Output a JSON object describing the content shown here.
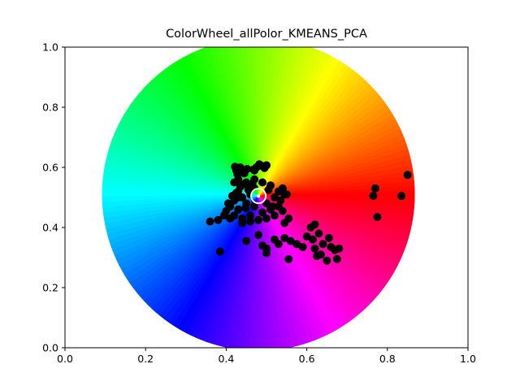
{
  "chart_data": {
    "type": "scatter",
    "title": "ColorWheel_allPolor_KMEANS_PCA",
    "xlabel": "",
    "ylabel": "",
    "xlim": [
      0,
      1
    ],
    "ylim": [
      0,
      1
    ],
    "x_ticks": [
      "0.0",
      "0.2",
      "0.4",
      "0.6",
      "0.8",
      "1.0"
    ],
    "y_ticks": [
      "0.0",
      "0.2",
      "0.4",
      "0.6",
      "0.8",
      "1.0"
    ],
    "grid": false,
    "legend": "none",
    "background": {
      "type": "hue-color-wheel",
      "center": [
        0.48,
        0.51
      ],
      "radius": 0.52,
      "hue_at_0deg": "red",
      "direction": "counterclockwise"
    },
    "marker_color": "#000000",
    "center_marker": {
      "x": 0.48,
      "y": 0.505,
      "type": "mini-color-wheel"
    },
    "points": [
      {
        "x": 0.425,
        "y": 0.59
      },
      {
        "x": 0.435,
        "y": 0.6
      },
      {
        "x": 0.428,
        "y": 0.577
      },
      {
        "x": 0.44,
        "y": 0.588
      },
      {
        "x": 0.452,
        "y": 0.595
      },
      {
        "x": 0.445,
        "y": 0.58
      },
      {
        "x": 0.422,
        "y": 0.602
      },
      {
        "x": 0.475,
        "y": 0.6
      },
      {
        "x": 0.488,
        "y": 0.605
      },
      {
        "x": 0.495,
        "y": 0.598
      },
      {
        "x": 0.482,
        "y": 0.61
      },
      {
        "x": 0.468,
        "y": 0.593
      },
      {
        "x": 0.5,
        "y": 0.607
      },
      {
        "x": 0.45,
        "y": 0.55
      },
      {
        "x": 0.47,
        "y": 0.53
      },
      {
        "x": 0.43,
        "y": 0.52
      },
      {
        "x": 0.44,
        "y": 0.5
      },
      {
        "x": 0.46,
        "y": 0.51
      },
      {
        "x": 0.42,
        "y": 0.49
      },
      {
        "x": 0.41,
        "y": 0.47
      },
      {
        "x": 0.43,
        "y": 0.46
      },
      {
        "x": 0.45,
        "y": 0.48
      },
      {
        "x": 0.47,
        "y": 0.47
      },
      {
        "x": 0.4,
        "y": 0.455
      },
      {
        "x": 0.42,
        "y": 0.44
      },
      {
        "x": 0.44,
        "y": 0.43
      },
      {
        "x": 0.46,
        "y": 0.44
      },
      {
        "x": 0.49,
        "y": 0.45
      },
      {
        "x": 0.51,
        "y": 0.46
      },
      {
        "x": 0.5,
        "y": 0.48
      },
      {
        "x": 0.52,
        "y": 0.5
      },
      {
        "x": 0.53,
        "y": 0.52
      },
      {
        "x": 0.51,
        "y": 0.54
      },
      {
        "x": 0.49,
        "y": 0.55
      },
      {
        "x": 0.47,
        "y": 0.56
      },
      {
        "x": 0.54,
        "y": 0.53
      },
      {
        "x": 0.545,
        "y": 0.51
      },
      {
        "x": 0.535,
        "y": 0.49
      },
      {
        "x": 0.53,
        "y": 0.47
      },
      {
        "x": 0.52,
        "y": 0.44
      },
      {
        "x": 0.5,
        "y": 0.43
      },
      {
        "x": 0.48,
        "y": 0.425
      },
      {
        "x": 0.46,
        "y": 0.42
      },
      {
        "x": 0.44,
        "y": 0.415
      },
      {
        "x": 0.43,
        "y": 0.5
      },
      {
        "x": 0.455,
        "y": 0.525
      },
      {
        "x": 0.465,
        "y": 0.545
      },
      {
        "x": 0.435,
        "y": 0.535
      },
      {
        "x": 0.425,
        "y": 0.515
      },
      {
        "x": 0.415,
        "y": 0.505
      },
      {
        "x": 0.448,
        "y": 0.465
      },
      {
        "x": 0.472,
        "y": 0.492
      },
      {
        "x": 0.505,
        "y": 0.525
      },
      {
        "x": 0.515,
        "y": 0.47
      },
      {
        "x": 0.54,
        "y": 0.455
      },
      {
        "x": 0.555,
        "y": 0.43
      },
      {
        "x": 0.545,
        "y": 0.415
      },
      {
        "x": 0.43,
        "y": 0.56
      },
      {
        "x": 0.445,
        "y": 0.545
      },
      {
        "x": 0.405,
        "y": 0.48
      },
      {
        "x": 0.395,
        "y": 0.44
      },
      {
        "x": 0.41,
        "y": 0.43
      },
      {
        "x": 0.38,
        "y": 0.425
      },
      {
        "x": 0.47,
        "y": 0.59
      },
      {
        "x": 0.42,
        "y": 0.55
      },
      {
        "x": 0.55,
        "y": 0.51
      },
      {
        "x": 0.36,
        "y": 0.42
      },
      {
        "x": 0.385,
        "y": 0.32
      },
      {
        "x": 0.45,
        "y": 0.355
      },
      {
        "x": 0.48,
        "y": 0.375
      },
      {
        "x": 0.49,
        "y": 0.34
      },
      {
        "x": 0.5,
        "y": 0.33
      },
      {
        "x": 0.5,
        "y": 0.315
      },
      {
        "x": 0.52,
        "y": 0.36
      },
      {
        "x": 0.53,
        "y": 0.345
      },
      {
        "x": 0.545,
        "y": 0.365
      },
      {
        "x": 0.555,
        "y": 0.295
      },
      {
        "x": 0.56,
        "y": 0.355
      },
      {
        "x": 0.575,
        "y": 0.345
      },
      {
        "x": 0.59,
        "y": 0.335
      },
      {
        "x": 0.6,
        "y": 0.37
      },
      {
        "x": 0.61,
        "y": 0.4
      },
      {
        "x": 0.62,
        "y": 0.41
      },
      {
        "x": 0.615,
        "y": 0.36
      },
      {
        "x": 0.62,
        "y": 0.33
      },
      {
        "x": 0.625,
        "y": 0.305
      },
      {
        "x": 0.63,
        "y": 0.38
      },
      {
        "x": 0.635,
        "y": 0.31
      },
      {
        "x": 0.64,
        "y": 0.345
      },
      {
        "x": 0.65,
        "y": 0.29
      },
      {
        "x": 0.655,
        "y": 0.365
      },
      {
        "x": 0.66,
        "y": 0.335
      },
      {
        "x": 0.67,
        "y": 0.325
      },
      {
        "x": 0.675,
        "y": 0.295
      },
      {
        "x": 0.68,
        "y": 0.33
      },
      {
        "x": 0.765,
        "y": 0.505
      },
      {
        "x": 0.77,
        "y": 0.53
      },
      {
        "x": 0.775,
        "y": 0.435
      },
      {
        "x": 0.835,
        "y": 0.505
      },
      {
        "x": 0.85,
        "y": 0.575
      }
    ]
  }
}
